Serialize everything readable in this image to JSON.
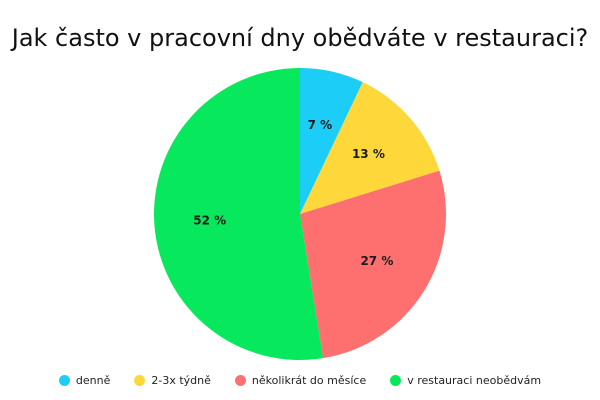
{
  "chart_data": {
    "type": "pie",
    "title": "Jak často v pracovní dny obědváte v restauraci?",
    "categories": [
      "denně",
      "2-3x týdně",
      "několikrát do měsíce",
      "v restauraci neobědvám"
    ],
    "values": [
      7,
      13,
      27,
      52
    ],
    "value_labels": [
      "7 %",
      "13 %",
      "27 %",
      "52 %"
    ],
    "colors": [
      "#1ccdf7",
      "#fed83a",
      "#fe7070",
      "#08e85d"
    ],
    "legend_position": "bottom"
  }
}
